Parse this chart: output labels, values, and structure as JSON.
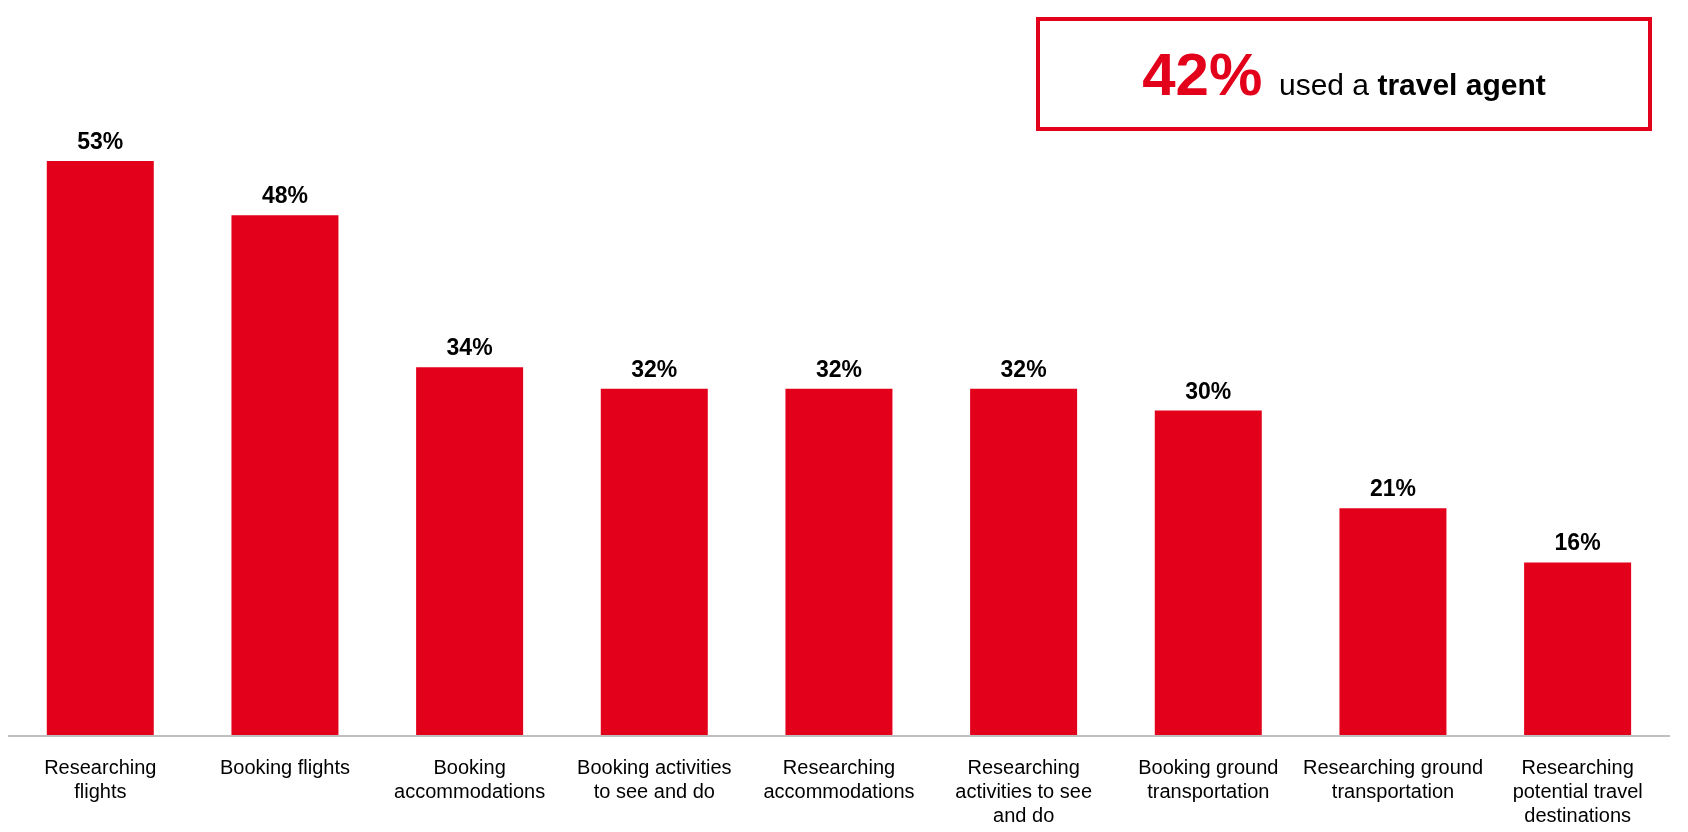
{
  "chart_data": {
    "type": "bar",
    "categories": [
      "Researching flights",
      "Booking flights",
      "Booking accommodations",
      "Booking activities to see and do",
      "Researching accommodations",
      "Researching activities to see and do",
      "Booking ground transportation",
      "Researching ground transportation",
      "Researching potential travel destinations"
    ],
    "values": [
      53,
      48,
      34,
      32,
      32,
      32,
      30,
      21,
      16
    ],
    "value_labels": [
      "53%",
      "48%",
      "34%",
      "32%",
      "32%",
      "32%",
      "30%",
      "21%",
      "16%"
    ],
    "color": "#e3001b",
    "annotations": [
      "42% used a travel agent"
    ]
  }
}
